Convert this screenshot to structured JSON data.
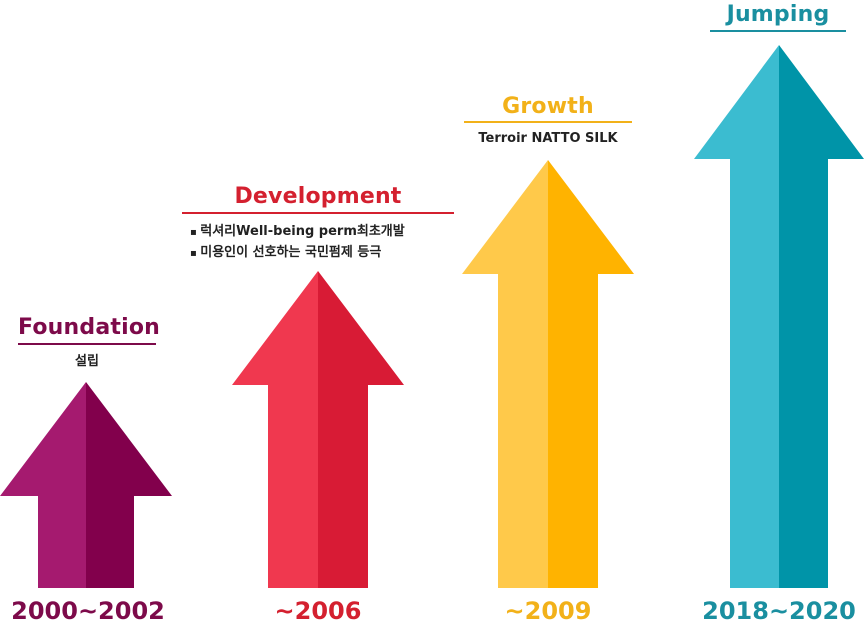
{
  "stages": [
    {
      "title": "Foundation",
      "description": "설립",
      "bullets": [],
      "year": "2000~2002",
      "colors": {
        "light": "#A51A6F",
        "dark": "#82004C",
        "text": "#7D0A4A"
      }
    },
    {
      "title": "Development",
      "description": "",
      "bullets": [
        "럭셔리Well-being perm최초개발",
        "미용인이 선호하는 국민펌제 등극"
      ],
      "year": "~2006",
      "colors": {
        "light": "#F0384F",
        "dark": "#D81B35",
        "text": "#D4202F"
      }
    },
    {
      "title": "Growth",
      "description": "Terroir NATTO SILK",
      "bullets": [],
      "year": "~2009",
      "colors": {
        "light": "#FFC94A",
        "dark": "#FFB300",
        "text": "#F2B119"
      }
    },
    {
      "title": "Jumping",
      "description": "",
      "bullets": [],
      "year": "2018~2020",
      "colors": {
        "light": "#3BBCD0",
        "dark": "#0094A8",
        "text": "#1A8FA0"
      }
    }
  ]
}
